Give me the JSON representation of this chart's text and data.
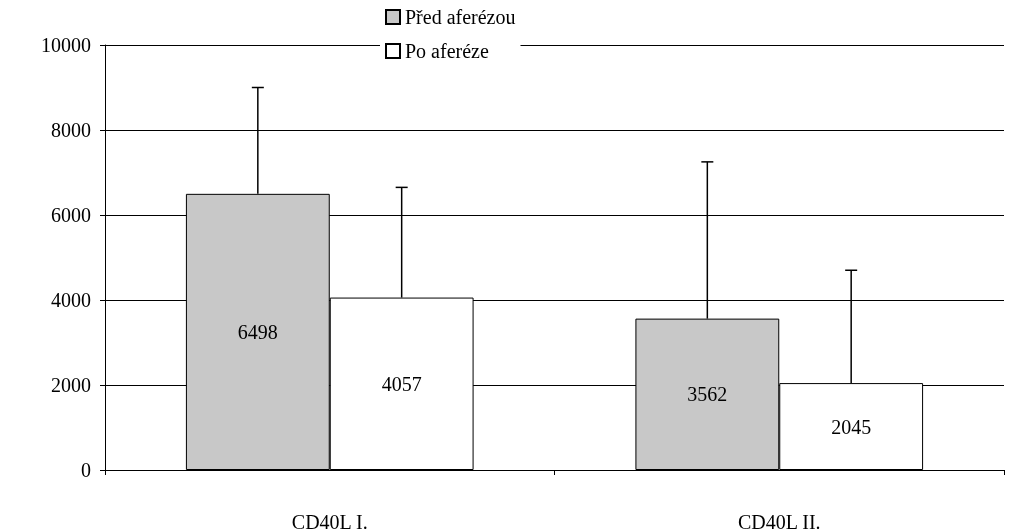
{
  "chart_data": {
    "type": "bar",
    "categories": [
      "CD40L I.",
      "CD40L II."
    ],
    "series": [
      {
        "name": "Před aferézou",
        "color": "#c8c8c8",
        "values": [
          6498,
          3562
        ],
        "errors": [
          [
            6498,
            9000
          ],
          [
            3562,
            7250
          ]
        ]
      },
      {
        "name": "Po aferéze",
        "color": "#ffffff",
        "values": [
          4057,
          2045
        ],
        "errors": [
          [
            4057,
            6650
          ],
          [
            2045,
            4700
          ]
        ]
      }
    ],
    "ylim": [
      0,
      10000
    ],
    "yticks": [
      0,
      2000,
      4000,
      6000,
      8000,
      10000
    ],
    "grid": "y",
    "legend": "top",
    "data_labels": true
  }
}
